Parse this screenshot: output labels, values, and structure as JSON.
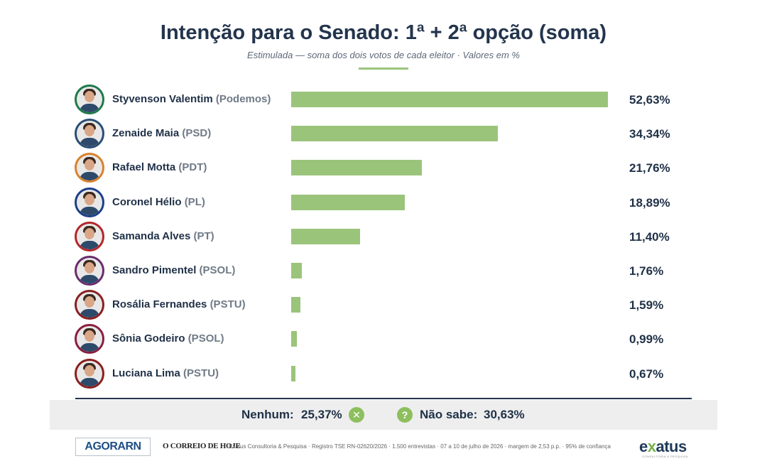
{
  "title": "Intenção para o Senado: 1ª + 2ª opção (soma)",
  "subtitle": "Estimulada — soma dos dois votos de cada eleitor · Valores em %",
  "colors": {
    "bar": "#9bc47b",
    "text": "#1f3047",
    "accent": "#8ebf5f"
  },
  "chart_data": {
    "type": "bar",
    "orientation": "horizontal",
    "title": "Intenção para o Senado: 1ª + 2ª opção (soma)",
    "xlim": [
      0,
      52.63
    ],
    "categories": [
      "Styvenson Valentim (Podemos)",
      "Zenaide Maia (PSD)",
      "Rafael Motta (PDT)",
      "Coronel Hélio (PL)",
      "Samanda Alves (PT)",
      "Sandro Pimentel (PSOL)",
      "Rosália Fernandes (PSTU)",
      "Sônia Godeiro (PSOL)",
      "Luciana Lima (PSTU)"
    ],
    "values": [
      52.63,
      34.34,
      21.76,
      18.89,
      11.4,
      1.76,
      1.59,
      0.99,
      0.67
    ]
  },
  "rows": [
    {
      "name": "Styvenson Valentim",
      "party": "(Podemos)",
      "value": 52.63,
      "label": "52,63%",
      "ring": "#1f7a4a"
    },
    {
      "name": "Zenaide Maia",
      "party": "(PSD)",
      "value": 34.34,
      "label": "34,34%",
      "ring": "#2b4d73"
    },
    {
      "name": "Rafael Motta",
      "party": "(PDT)",
      "value": 21.76,
      "label": "21,76%",
      "ring": "#d9822b"
    },
    {
      "name": "Coronel Hélio",
      "party": "(PL)",
      "value": 18.89,
      "label": "18,89%",
      "ring": "#1d3f8a"
    },
    {
      "name": "Samanda Alves",
      "party": "(PT)",
      "value": 11.4,
      "label": "11,40%",
      "ring": "#b3262a"
    },
    {
      "name": "Sandro Pimentel",
      "party": "(PSOL)",
      "value": 1.76,
      "label": "1,76%",
      "ring": "#6b2c6e"
    },
    {
      "name": "Rosália Fernandes",
      "party": "(PSTU)",
      "value": 1.59,
      "label": "1,59%",
      "ring": "#8a1f1f"
    },
    {
      "name": "Sônia Godeiro",
      "party": "(PSOL)",
      "value": 0.99,
      "label": "0,99%",
      "ring": "#8a1f3f"
    },
    {
      "name": "Luciana Lima",
      "party": "(PSTU)",
      "value": 0.67,
      "label": "0,67%",
      "ring": "#8a1f1f"
    }
  ],
  "summary": {
    "nenhum_label": "Nenhum:",
    "nenhum_value": "25,37%",
    "nenhum_icon": "x-circle-icon",
    "nao_sabe_label": "Não sabe:",
    "nao_sabe_value": "30,63%",
    "nao_sabe_icon": "question-circle-icon"
  },
  "footer": {
    "logo_agora": "AGORARN",
    "logo_correio": "O CORREIO DE HOJE",
    "credit": "Exatus Consultoria & Pesquisa · Registro TSE RN-02620/2026 · 1.500 entrevistas · 07 a 10 de julho de 2026 · margem de 2,53 p.p. · 95% de confiança",
    "logo_exatus_pre": "e",
    "logo_exatus_x": "x",
    "logo_exatus_post": "atus",
    "logo_exatus_sub": "CONSULTORIA & PESQUISA"
  }
}
